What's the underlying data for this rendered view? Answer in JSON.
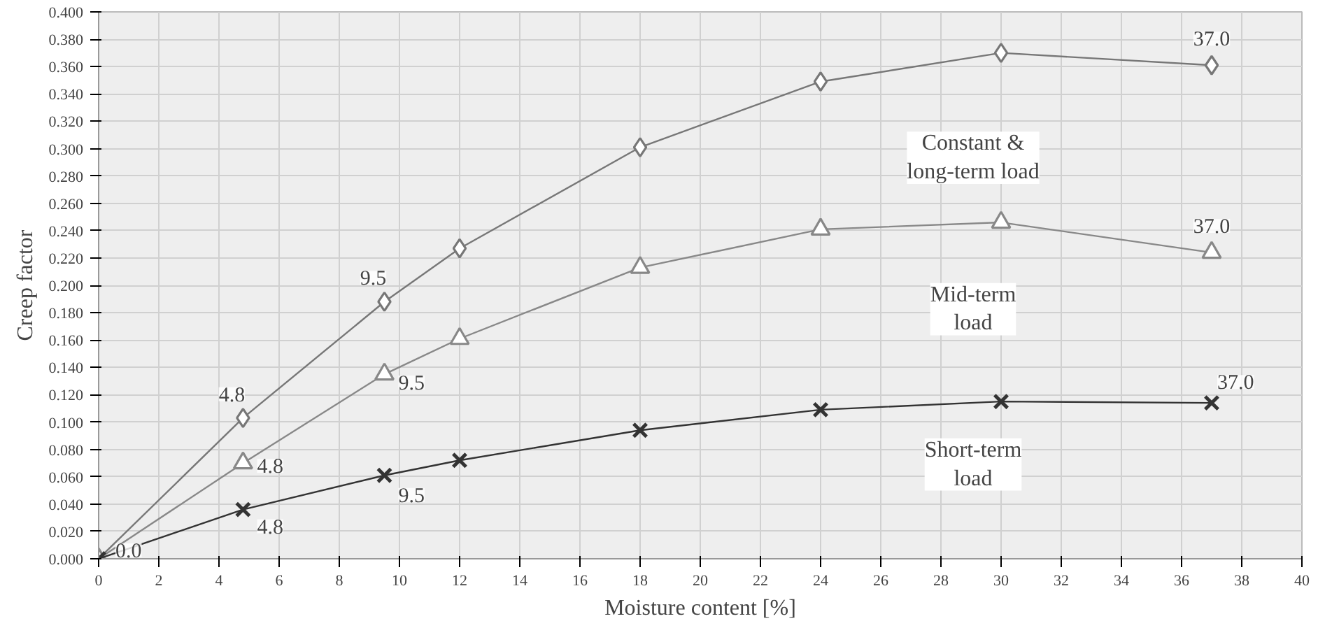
{
  "chart_data": {
    "type": "line",
    "xlabel": "Moisture content [%]",
    "ylabel": "Creep factor",
    "x": [
      0,
      4.8,
      9.5,
      12,
      18,
      24,
      30,
      37
    ],
    "series": [
      {
        "name": "Constant &\nlong-term load",
        "color": "#777777",
        "marker": "diamond",
        "values": [
          0.0,
          0.103,
          0.188,
          0.227,
          0.301,
          0.349,
          0.37,
          0.361
        ]
      },
      {
        "name": "Mid-term\nload",
        "color": "#888888",
        "marker": "triangle",
        "values": [
          0.0,
          0.07,
          0.135,
          0.161,
          0.213,
          0.241,
          0.246,
          0.224
        ]
      },
      {
        "name": "Short-term\nload",
        "color": "#333333",
        "marker": "x",
        "values": [
          0.0,
          0.036,
          0.061,
          0.072,
          0.094,
          0.109,
          0.115,
          0.114
        ]
      }
    ],
    "annotations": [
      {
        "text": "4.8",
        "x": 4.8,
        "y": 0.103
      },
      {
        "text": "9.5",
        "x": 9.5,
        "y": 0.188
      },
      {
        "text": "37.0",
        "x": 37,
        "y": 0.361
      },
      {
        "text": "4.8",
        "x": 4.8,
        "y": 0.07
      },
      {
        "text": "9.5",
        "x": 9.5,
        "y": 0.135
      },
      {
        "text": "37.0",
        "x": 37,
        "y": 0.224
      },
      {
        "text": "4.8",
        "x": 4.8,
        "y": 0.036
      },
      {
        "text": "9.5",
        "x": 9.5,
        "y": 0.061
      },
      {
        "text": "37.0",
        "x": 37,
        "y": 0.114
      },
      {
        "text": "0.0",
        "x": 0,
        "y": 0.0
      }
    ],
    "xlim": [
      0,
      40
    ],
    "ylim": [
      0,
      0.4
    ],
    "xticks": [
      0,
      2,
      4,
      6,
      8,
      10,
      12,
      14,
      16,
      18,
      20,
      22,
      24,
      26,
      28,
      30,
      32,
      34,
      36,
      38,
      40
    ],
    "yticks": [
      {
        "value": 0,
        "label": "0.000"
      },
      {
        "value": 0.02,
        "label": "0.020"
      },
      {
        "value": 0.04,
        "label": "0.040"
      },
      {
        "value": 0.06,
        "label": "0.060"
      },
      {
        "value": 0.08,
        "label": "0.080"
      },
      {
        "value": 0.1,
        "label": "0.100"
      },
      {
        "value": 0.12,
        "label": "0.120"
      },
      {
        "value": 0.14,
        "label": "0.140"
      },
      {
        "value": 0.16,
        "label": "0.160"
      },
      {
        "value": 0.18,
        "label": "0.180"
      },
      {
        "value": 0.2,
        "label": "0.200"
      },
      {
        "value": 0.22,
        "label": "0.220"
      },
      {
        "value": 0.24,
        "label": "0.240"
      },
      {
        "value": 0.26,
        "label": "0.260"
      },
      {
        "value": 0.28,
        "label": "0.280"
      },
      {
        "value": 0.3,
        "label": "0.300"
      },
      {
        "value": 0.32,
        "label": "0.320"
      },
      {
        "value": 0.34,
        "label": "0.340"
      },
      {
        "value": 0.36,
        "label": "0.360"
      },
      {
        "value": 0.38,
        "label": "0.380"
      },
      {
        "value": 0.4,
        "label": "0.400"
      }
    ],
    "grid": true,
    "legend": false
  }
}
